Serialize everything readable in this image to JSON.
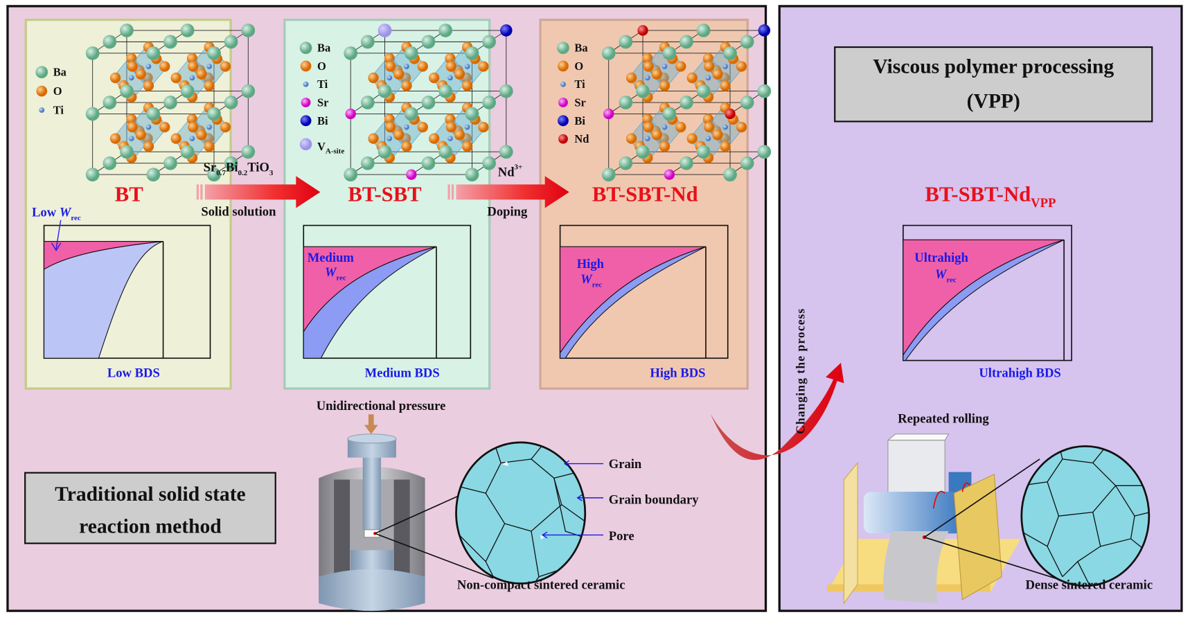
{
  "colors": {
    "left_bg": "#ebcde0",
    "right_bg": "#d6c3ee",
    "bt_panel": "#eef0d8",
    "sbt_panel": "#d8f2e6",
    "nd_panel": "#f0c8b0",
    "pink_area": "#f060a8",
    "blue_band": "#8c9cf4",
    "title_red": "#e8101a",
    "label_blue": "#1a1ae6",
    "grain": "#8ad8e4"
  },
  "bt": {
    "legend": [
      "Ba",
      "O",
      "Ti"
    ],
    "title": "BT",
    "wrec_prefix": "Low ",
    "w": "W",
    "rec": "rec",
    "bds": "Low  BDS"
  },
  "arrow1": {
    "formula_sr": "Sr",
    "sub1": "0.7",
    "bi": "Bi",
    "sub2": "0.2",
    "tio": "TiO",
    "sub3": "3",
    "label": "Solid solution"
  },
  "sbt": {
    "legend": [
      "Ba",
      "O",
      "Ti",
      "Sr",
      "Bi"
    ],
    "vacancy_v": "V",
    "vacancy_sub": "A-site",
    "title": "BT-SBT",
    "wrec_prefix": "Medium",
    "w": "W",
    "rec": "rec",
    "bds": "Medium BDS"
  },
  "arrow2": {
    "ion": "Nd",
    "charge": "3+",
    "label": "Doping"
  },
  "nd": {
    "legend": [
      "Ba",
      "O",
      "Ti",
      "Sr",
      "Bi",
      "Nd"
    ],
    "title": "BT-SBT-Nd",
    "wrec_prefix": "High",
    "w": "W",
    "rec": "rec",
    "bds": "High  BDS"
  },
  "traditional": {
    "box_line1": "Traditional solid state",
    "box_line2": "reaction method",
    "pressure": "Unidirectional pressure",
    "grain": "Grain",
    "grain_boundary": "Grain boundary",
    "pore": "Pore",
    "ceramic": "Non-compact sintered ceramic"
  },
  "vpp": {
    "box_line1": "Viscous polymer processing",
    "box_line2": "(VPP)",
    "title": "BT-SBT-Nd",
    "title_sub": "VPP",
    "wrec_prefix": "Ultrahigh",
    "w": "W",
    "rec": "rec",
    "bds": "Ultrahigh BDS",
    "changing": "Changing the process",
    "rolling": "Repeated rolling",
    "ceramic": "Dense sintered ceramic"
  }
}
